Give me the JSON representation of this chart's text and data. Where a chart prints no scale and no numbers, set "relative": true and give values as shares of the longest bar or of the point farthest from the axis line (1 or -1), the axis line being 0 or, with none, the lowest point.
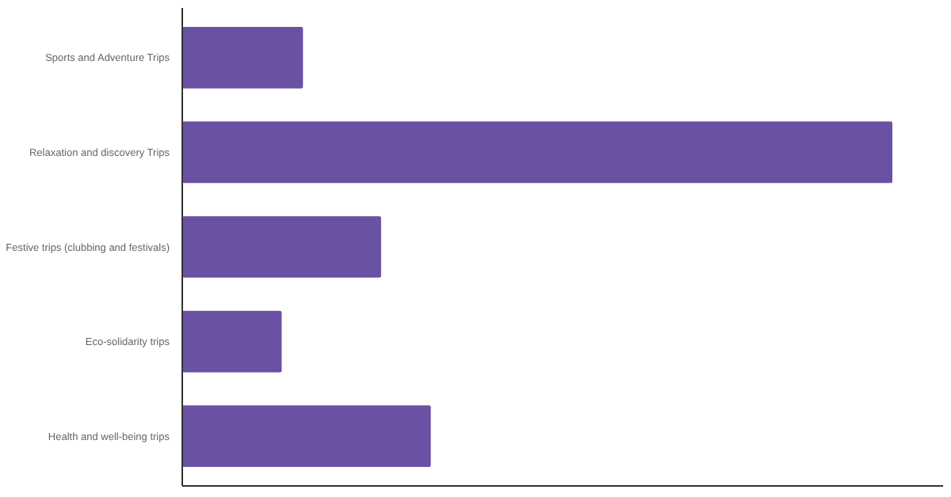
{
  "chart_data": {
    "type": "bar",
    "orientation": "horizontal",
    "relative": true,
    "categories": [
      "Sports and Adventure Trips",
      "Relaxation and discovery Trips",
      "Festive trips (clubbing and festivals)",
      "Eco-solidarity trips",
      "Health and well-being trips"
    ],
    "values": [
      0.17,
      1,
      0.28,
      0.14,
      0.35
    ],
    "color": "#6a51a3"
  }
}
